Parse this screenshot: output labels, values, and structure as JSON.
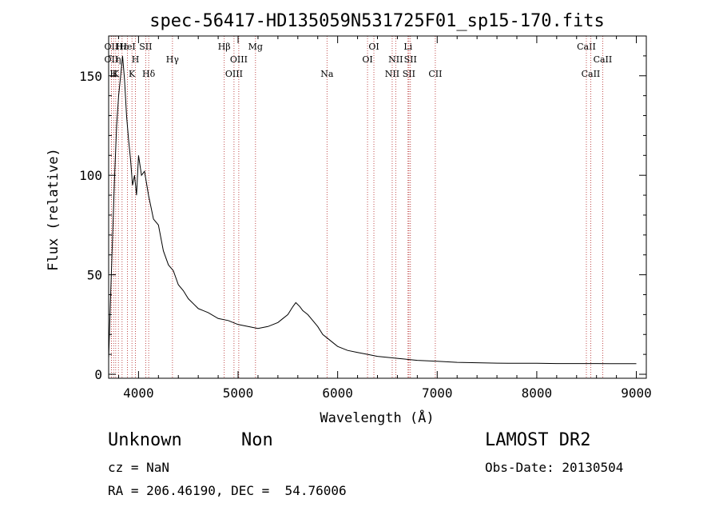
{
  "chart_data": {
    "type": "line",
    "title": "spec-56417-HD135059N531725F01_sp15-170.fits",
    "xlabel": "Wavelength (Å)",
    "ylabel": "Flux (relative)",
    "xlim": [
      3700,
      9100
    ],
    "ylim": [
      -2,
      170
    ],
    "xticks": [
      4000,
      5000,
      6000,
      7000,
      8000,
      9000
    ],
    "yticks": [
      0,
      50,
      100,
      150
    ],
    "grid": false,
    "series": [
      {
        "color": "#000000",
        "x": [
          3700,
          3720,
          3740,
          3760,
          3780,
          3800,
          3820,
          3840,
          3860,
          3880,
          3900,
          3920,
          3940,
          3960,
          3980,
          4000,
          4030,
          4060,
          4100,
          4150,
          4200,
          4250,
          4300,
          4350,
          4400,
          4450,
          4500,
          4600,
          4700,
          4800,
          4900,
          5000,
          5100,
          5200,
          5300,
          5400,
          5450,
          5500,
          5550,
          5580,
          5620,
          5650,
          5700,
          5750,
          5800,
          5850,
          5900,
          5950,
          6000,
          6100,
          6200,
          6300,
          6400,
          6500,
          6600,
          6700,
          6800,
          7000,
          7200,
          7400,
          7600,
          7800,
          8000,
          8200,
          8400,
          8600,
          8800,
          9000
        ],
        "y": [
          8,
          40,
          70,
          100,
          125,
          140,
          150,
          160,
          148,
          130,
          118,
          108,
          95,
          100,
          90,
          110,
          100,
          102,
          90,
          78,
          75,
          62,
          55,
          52,
          45,
          42,
          38,
          33,
          31,
          28,
          27,
          25,
          24,
          23,
          24,
          26,
          28,
          30,
          34,
          36,
          34,
          32,
          30,
          27,
          24,
          20,
          18,
          16,
          14,
          12,
          11,
          10,
          9,
          8.5,
          8,
          7.5,
          7,
          6.5,
          6,
          5.8,
          5.6,
          5.5,
          5.5,
          5.4,
          5.4,
          5.4,
          5.3,
          5.3
        ]
      }
    ],
    "line_markers": [
      {
        "wave": 3727,
        "label": "OII",
        "row": 0
      },
      {
        "wave": 3727,
        "label": "OII",
        "row": 1
      },
      {
        "wave": 3750,
        "label": "H",
        "row": 2
      },
      {
        "wave": 3771,
        "label": "K",
        "row": 2
      },
      {
        "wave": 3798,
        "label": "η",
        "row": 1
      },
      {
        "wave": 3835,
        "label": "Hε",
        "row": 0
      },
      {
        "wave": 3889,
        "label": "HeI",
        "row": 0
      },
      {
        "wave": 3934,
        "label": "K",
        "row": 2
      },
      {
        "wave": 3969,
        "label": "H",
        "row": 1
      },
      {
        "wave": 4072,
        "label": "SII",
        "row": 0
      },
      {
        "wave": 4102,
        "label": "Hδ",
        "row": 2
      },
      {
        "wave": 4341,
        "label": "Hγ",
        "row": 1
      },
      {
        "wave": 4861,
        "label": "Hβ",
        "row": 0
      },
      {
        "wave": 4959,
        "label": "OIII",
        "row": 2
      },
      {
        "wave": 5007,
        "label": "OIII",
        "row": 1
      },
      {
        "wave": 5175,
        "label": "Mg",
        "row": 0
      },
      {
        "wave": 5893,
        "label": "Na",
        "row": 2
      },
      {
        "wave": 6300,
        "label": "OI",
        "row": 1
      },
      {
        "wave": 6364,
        "label": "OI",
        "row": 0
      },
      {
        "wave": 6548,
        "label": "NII",
        "row": 2
      },
      {
        "wave": 6583,
        "label": "NII",
        "row": 1
      },
      {
        "wave": 6707,
        "label": "Li",
        "row": 0
      },
      {
        "wave": 6716,
        "label": "SII",
        "row": 2
      },
      {
        "wave": 6731,
        "label": "SII",
        "row": 1
      },
      {
        "wave": 6981,
        "label": "CII",
        "row": 2
      },
      {
        "wave": 8498,
        "label": "CaII",
        "row": 0
      },
      {
        "wave": 8542,
        "label": "CaII",
        "row": 2
      },
      {
        "wave": 8662,
        "label": "CaII",
        "row": 1
      }
    ]
  },
  "info": {
    "class": "Unknown",
    "subclass": "Non",
    "survey": "LAMOST DR2",
    "cz": "cz = NaN",
    "obs_date": "Obs-Date: 20130504",
    "coords": "RA = 206.46190, DEC =  54.76006"
  }
}
